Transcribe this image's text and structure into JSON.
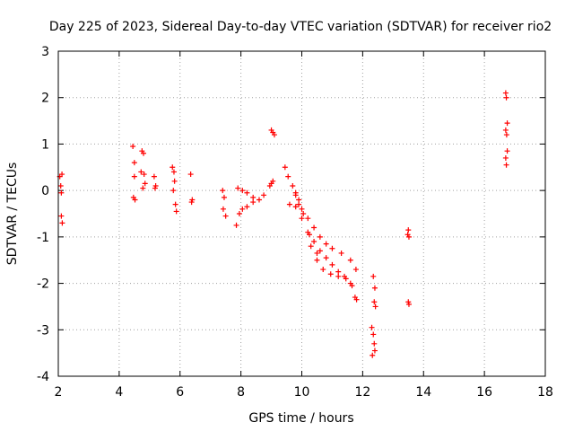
{
  "chart_data": {
    "type": "scatter",
    "title": "Day 225 of 2023, Sidereal Day-to-day VTEC variation (SDTVAR) for receiver rio2",
    "xlabel": "GPS time / hours",
    "ylabel": "SDTVAR / TECUs",
    "xlim": [
      2,
      18
    ],
    "ylim": [
      -4,
      3
    ],
    "x_ticks": [
      "2",
      "4",
      "6",
      "8",
      "10",
      "12",
      "14",
      "16",
      "18"
    ],
    "y_ticks": [
      "3",
      "2",
      "1",
      "0",
      "-1",
      "-2",
      "-3",
      "-4"
    ],
    "grid": true,
    "marker": "+",
    "series": [
      {
        "name": "SDTVAR",
        "color": "#ff0000",
        "points": [
          [
            2.05,
            0.3
          ],
          [
            2.08,
            0.1
          ],
          [
            2.1,
            -0.05
          ],
          [
            2.12,
            0.35
          ],
          [
            2.1,
            -0.55
          ],
          [
            2.13,
            -0.7
          ],
          [
            4.45,
            0.95
          ],
          [
            4.5,
            0.6
          ],
          [
            4.5,
            0.3
          ],
          [
            4.47,
            -0.15
          ],
          [
            4.52,
            -0.2
          ],
          [
            4.75,
            0.85
          ],
          [
            4.8,
            0.8
          ],
          [
            4.72,
            0.4
          ],
          [
            4.82,
            0.35
          ],
          [
            4.85,
            0.15
          ],
          [
            4.78,
            0.05
          ],
          [
            5.15,
            0.3
          ],
          [
            5.2,
            0.1
          ],
          [
            5.18,
            0.05
          ],
          [
            5.75,
            0.5
          ],
          [
            5.8,
            0.4
          ],
          [
            5.82,
            0.2
          ],
          [
            5.78,
            0.0
          ],
          [
            5.85,
            -0.3
          ],
          [
            5.88,
            -0.45
          ],
          [
            6.35,
            0.35
          ],
          [
            6.4,
            -0.2
          ],
          [
            6.38,
            -0.25
          ],
          [
            7.4,
            0.0
          ],
          [
            7.45,
            -0.15
          ],
          [
            7.42,
            -0.4
          ],
          [
            7.5,
            -0.55
          ],
          [
            7.85,
            -0.75
          ],
          [
            7.95,
            -0.5
          ],
          [
            8.05,
            -0.4
          ],
          [
            8.2,
            -0.35
          ],
          [
            8.4,
            -0.25
          ],
          [
            7.9,
            0.05
          ],
          [
            8.05,
            0.0
          ],
          [
            8.2,
            -0.05
          ],
          [
            8.4,
            -0.15
          ],
          [
            8.6,
            -0.2
          ],
          [
            8.75,
            -0.1
          ],
          [
            8.95,
            0.1
          ],
          [
            9.05,
            0.2
          ],
          [
            9.0,
            0.15
          ],
          [
            9.0,
            1.3
          ],
          [
            9.05,
            1.25
          ],
          [
            9.1,
            1.2
          ],
          [
            9.45,
            0.5
          ],
          [
            9.55,
            0.3
          ],
          [
            9.7,
            0.1
          ],
          [
            9.8,
            -0.1
          ],
          [
            9.9,
            -0.3
          ],
          [
            10.0,
            -0.6
          ],
          [
            10.2,
            -0.9
          ],
          [
            10.4,
            -1.1
          ],
          [
            10.6,
            -1.3
          ],
          [
            10.8,
            -1.45
          ],
          [
            11.0,
            -1.6
          ],
          [
            11.2,
            -1.75
          ],
          [
            11.4,
            -1.85
          ],
          [
            11.6,
            -2.0
          ],
          [
            11.75,
            -2.3
          ],
          [
            9.6,
            -0.3
          ],
          [
            9.8,
            -0.35
          ],
          [
            10.0,
            -0.4
          ],
          [
            10.2,
            -0.6
          ],
          [
            10.4,
            -0.8
          ],
          [
            10.6,
            -1.0
          ],
          [
            10.8,
            -1.15
          ],
          [
            11.0,
            -1.25
          ],
          [
            11.3,
            -1.35
          ],
          [
            11.6,
            -1.5
          ],
          [
            11.78,
            -1.7
          ],
          [
            10.3,
            -1.2
          ],
          [
            10.5,
            -1.5
          ],
          [
            10.7,
            -1.7
          ],
          [
            10.95,
            -1.8
          ],
          [
            11.2,
            -1.85
          ],
          [
            11.45,
            -1.9
          ],
          [
            11.65,
            -2.05
          ],
          [
            11.8,
            -2.35
          ],
          [
            9.8,
            -0.05
          ],
          [
            9.9,
            -0.2
          ],
          [
            10.05,
            -0.5
          ],
          [
            10.25,
            -0.95
          ],
          [
            10.5,
            -1.35
          ],
          [
            12.35,
            -1.85
          ],
          [
            12.4,
            -2.1
          ],
          [
            12.38,
            -2.4
          ],
          [
            12.42,
            -2.5
          ],
          [
            12.3,
            -2.95
          ],
          [
            12.35,
            -3.1
          ],
          [
            12.38,
            -3.3
          ],
          [
            12.4,
            -3.45
          ],
          [
            12.32,
            -3.55
          ],
          [
            13.5,
            -0.85
          ],
          [
            13.48,
            -0.95
          ],
          [
            13.52,
            -1.0
          ],
          [
            13.5,
            -2.4
          ],
          [
            13.52,
            -2.45
          ],
          [
            16.7,
            2.1
          ],
          [
            16.72,
            2.0
          ],
          [
            16.75,
            1.45
          ],
          [
            16.7,
            1.3
          ],
          [
            16.73,
            1.2
          ],
          [
            16.75,
            0.85
          ],
          [
            16.7,
            0.7
          ],
          [
            16.72,
            0.55
          ]
        ]
      }
    ]
  }
}
